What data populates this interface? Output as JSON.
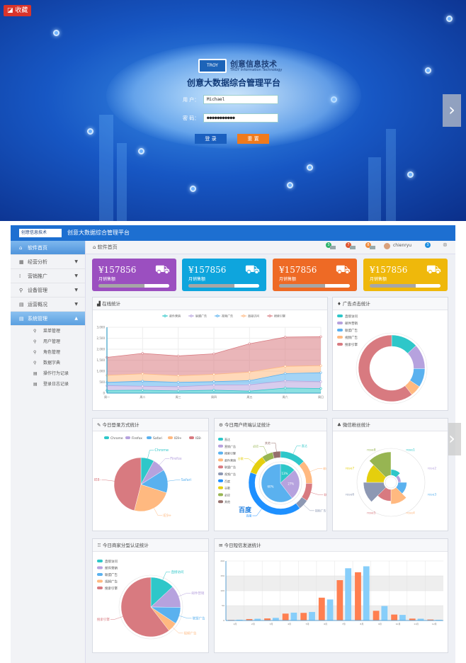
{
  "favorite": {
    "label": "收藏"
  },
  "login": {
    "logo_text": "TROY",
    "brand": "创意信息技术",
    "brand_sub": "TROY Information Technology",
    "title": "创意大数据综合管理平台",
    "user_label": "用 户：",
    "user_value": "Michael",
    "pass_label": "密 码：",
    "pass_value": "●●●●●●●●●●●",
    "login_btn": "登 录",
    "reset_btn": "重 置"
  },
  "carousel": {
    "next": "›"
  },
  "header": {
    "logo_text": "创意信息技术",
    "title": "创意大数据综合管理平台",
    "badges": [
      "3",
      "7",
      "8"
    ],
    "user": "chienryu",
    "user_badge": "3"
  },
  "sidebar": {
    "items": [
      {
        "label": "软件首页",
        "icon": "home-icon",
        "glyph": "⌂"
      },
      {
        "label": "经营分析",
        "icon": "calendar-icon",
        "glyph": "▦"
      },
      {
        "label": "营销推广",
        "icon": "grid-icon",
        "glyph": "⁞"
      },
      {
        "label": "设备管理",
        "icon": "key-icon",
        "glyph": "⚲"
      },
      {
        "label": "运营概况",
        "icon": "document-icon",
        "glyph": "▤"
      },
      {
        "label": "系统管理",
        "icon": "document-icon",
        "glyph": "▤"
      }
    ],
    "sub_items": [
      {
        "label": "菜单管理",
        "icon": "key-icon",
        "glyph": "⚲"
      },
      {
        "label": "用户管理",
        "icon": "key-icon",
        "glyph": "⚲"
      },
      {
        "label": "角色管理",
        "icon": "key-icon",
        "glyph": "⚲"
      },
      {
        "label": "数据字典",
        "icon": "key-icon",
        "glyph": "⚲"
      },
      {
        "label": "操作行为记录",
        "icon": "document-icon",
        "glyph": "▤"
      },
      {
        "label": "登录日志记录",
        "icon": "document-icon",
        "glyph": "▤"
      }
    ]
  },
  "breadcrumb": {
    "label": "软件首页"
  },
  "cards": [
    {
      "value": "¥157856",
      "label": "月销售额",
      "progress": 0.65,
      "color": "#9b4fc0"
    },
    {
      "value": "¥157856",
      "label": "月销售额",
      "progress": 0.65,
      "color": "#0ea5dd"
    },
    {
      "value": "¥157856",
      "label": "月销售额",
      "progress": 0.65,
      "color": "#ee6a25"
    },
    {
      "value": "¥157856",
      "label": "月销售额",
      "progress": 0.65,
      "color": "#efb80b"
    }
  ],
  "panels": {
    "line": "在线统计",
    "donut": "广告点击统计",
    "browser": "今日登录方式统计",
    "terminal": "今日用户终端认证统计",
    "rose": "微信粉丝统计",
    "merchant": "今日商家分型认证统计",
    "sms": "今日短信发送统计"
  },
  "chart_data": [
    {
      "type": "area",
      "stacked": true,
      "categories": [
        "周一",
        "周二",
        "周三",
        "周四",
        "周五",
        "周六",
        "周日"
      ],
      "ylim": [
        0,
        3000
      ],
      "yticks": [
        "0",
        "500",
        "1,000",
        "1,500",
        "2,000",
        "2,500",
        "3,000"
      ],
      "legend": "top",
      "series": [
        {
          "name": "邮件营销",
          "values": [
            120,
            132,
            101,
            134,
            90,
            230,
            210
          ],
          "color": "#2ec7c9"
        },
        {
          "name": "联盟广告",
          "values": [
            220,
            182,
            191,
            234,
            290,
            330,
            310
          ],
          "color": "#b6a2de"
        },
        {
          "name": "视频广告",
          "values": [
            150,
            232,
            201,
            154,
            190,
            330,
            410
          ],
          "color": "#5ab1ef"
        },
        {
          "name": "直接访问",
          "values": [
            320,
            332,
            301,
            334,
            390,
            330,
            320
          ],
          "color": "#ffb980"
        },
        {
          "name": "搜索引擎",
          "values": [
            820,
            932,
            901,
            934,
            1290,
            1330,
            1320
          ],
          "color": "#d87a80"
        }
      ]
    },
    {
      "type": "pie",
      "donut": true,
      "legend": "top-left",
      "labels": [
        "直接访问",
        "邮件营销",
        "联盟广告",
        "视频广告",
        "搜索引擎"
      ],
      "values": [
        335,
        310,
        234,
        135,
        1548
      ],
      "colors": [
        "#2ec7c9",
        "#b6a2de",
        "#5ab1ef",
        "#ffb980",
        "#d87a80"
      ]
    },
    {
      "type": "pie",
      "legend": "top",
      "labels": [
        "Chrome",
        "Firefox",
        "Safari",
        "IE9+",
        "IE8-"
      ],
      "values": [
        8,
        8,
        14,
        24,
        46
      ],
      "colors": [
        "#2ec7c9",
        "#b6a2de",
        "#5ab1ef",
        "#ffb980",
        "#d87a80"
      ]
    },
    {
      "type": "pie",
      "nested": true,
      "legend": "left",
      "legend_labels": [
        "直达",
        "营销广告",
        "搜索引擎",
        "邮件营销",
        "联盟广告",
        "视频广告",
        "百度",
        "谷歌",
        "必应",
        "其他"
      ],
      "inner": {
        "labels": [
          "13%",
          "27%",
          "60%"
        ],
        "values": [
          335,
          679,
          1548
        ],
        "colors": [
          "#2ec7c9",
          "#b6a2de",
          "#5ab1ef"
        ]
      },
      "outer": {
        "labels": [
          "直达",
          "邮件营销",
          "联盟广告",
          "视频广告",
          "百度",
          "谷歌",
          "必应",
          "其他"
        ],
        "values": [
          335,
          310,
          234,
          135,
          1048,
          251,
          147,
          102
        ],
        "colors": [
          "#2ec7c9",
          "#ffb980",
          "#d87a80",
          "#8d98b3",
          "#1e90ff",
          "#e5cf0d",
          "#97b552",
          "#95706d"
        ]
      },
      "highlight": "百度"
    },
    {
      "type": "pie",
      "rose": true,
      "labels": [
        "rose1",
        "rose2",
        "rose3",
        "rose4",
        "rose5",
        "rose6",
        "rose7",
        "rose8"
      ],
      "values": [
        10,
        5,
        15,
        25,
        20,
        35,
        30,
        40
      ],
      "colors": [
        "#2ec7c9",
        "#b6a2de",
        "#5ab1ef",
        "#ffb980",
        "#d87a80",
        "#8d98b3",
        "#e5cf0d",
        "#97b552"
      ]
    },
    {
      "type": "pie",
      "legend": "top-left",
      "labels": [
        "直接访问",
        "邮件营销",
        "联盟广告",
        "视频广告",
        "搜索引擎"
      ],
      "values": [
        335,
        310,
        234,
        135,
        1548
      ],
      "colors": [
        "#2ec7c9",
        "#b6a2de",
        "#5ab1ef",
        "#ffb980",
        "#d87a80"
      ]
    },
    {
      "type": "bar",
      "categories": [
        "1月",
        "2月",
        "3月",
        "4月",
        "5月",
        "6月",
        "7月",
        "8月",
        "9月",
        "10月",
        "11月",
        "12月"
      ],
      "ylim": [
        0,
        200
      ],
      "yticks": [
        "0",
        "50",
        "100",
        "150",
        "200"
      ],
      "series": [
        {
          "values": [
            2.0,
            4.9,
            7.0,
            23.2,
            25.6,
            76.7,
            135.6,
            162.2,
            32.6,
            20.0,
            6.4,
            3.3
          ],
          "color": "#ff7f50"
        },
        {
          "values": [
            2.6,
            5.9,
            9.0,
            26.4,
            28.7,
            70.7,
            175.6,
            182.2,
            48.7,
            18.8,
            6.0,
            2.3
          ],
          "color": "#87cefa"
        }
      ]
    }
  ]
}
